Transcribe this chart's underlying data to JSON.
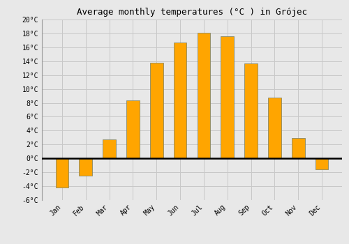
{
  "title": "Average monthly temperatures (°C ) in Grójec",
  "months": [
    "Jan",
    "Feb",
    "Mar",
    "Apr",
    "May",
    "Jun",
    "Jul",
    "Aug",
    "Sep",
    "Oct",
    "Nov",
    "Dec"
  ],
  "values": [
    -4.2,
    -2.5,
    2.7,
    8.4,
    13.8,
    16.7,
    18.1,
    17.6,
    13.7,
    8.8,
    2.9,
    -1.6
  ],
  "bar_color": "#FFA500",
  "bar_edge_color": "#888866",
  "ylim": [
    -6,
    20
  ],
  "yticks": [
    -6,
    -4,
    -2,
    0,
    2,
    4,
    6,
    8,
    10,
    12,
    14,
    16,
    18,
    20
  ],
  "ytick_labels": [
    "-6°C",
    "-4°C",
    "-2°C",
    "0°C",
    "2°C",
    "4°C",
    "6°C",
    "8°C",
    "10°C",
    "12°C",
    "14°C",
    "16°C",
    "18°C",
    "20°C"
  ],
  "background_color": "#e8e8e8",
  "plot_bg_color": "#e8e8e8",
  "grid_color": "#c8c8c8",
  "title_fontsize": 9,
  "tick_fontsize": 7,
  "bar_width": 0.55
}
